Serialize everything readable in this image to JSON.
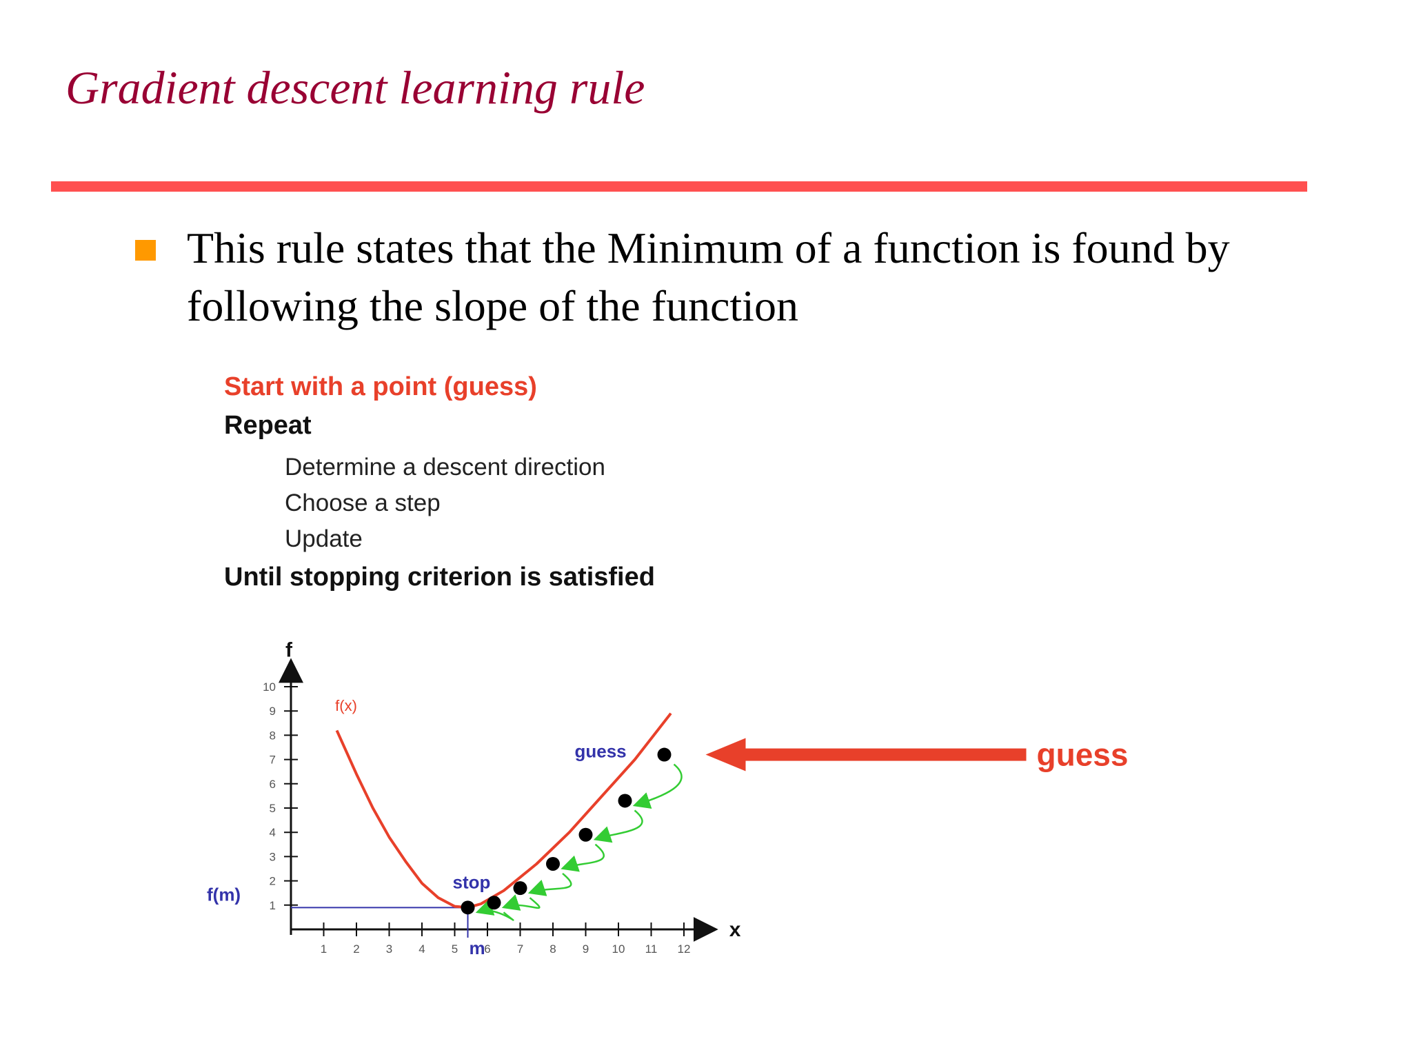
{
  "slide": {
    "title": "Gradient descent learning rule",
    "bullet": "This rule states that the Minimum of a function is found by following the slope of the function"
  },
  "algorithm": {
    "start": "Start with a point (guess)",
    "repeat": "Repeat",
    "steps": [
      "Determine a descent direction",
      "Choose a step",
      "Update"
    ],
    "until": "Until stopping criterion is satisfied"
  },
  "colors": {
    "title": "#990033",
    "rule": "#ff5050",
    "bullet": "#ff9900",
    "curve": "#e8402a",
    "arrow": "#e8402a",
    "green_arrows": "#33cc33",
    "blue_label": "#3333aa"
  },
  "chart_data": {
    "type": "line",
    "ylabel": "f",
    "xlabel": "x",
    "curve_label": "f(x)",
    "xlim": [
      0,
      12.5
    ],
    "ylim": [
      0,
      10.5
    ],
    "x_ticks": [
      "1",
      "2",
      "3",
      "4",
      "5",
      "6",
      "7",
      "8",
      "9",
      "10",
      "11",
      "12"
    ],
    "y_ticks": [
      "1",
      "2",
      "3",
      "4",
      "5",
      "6",
      "7",
      "8",
      "9",
      "10"
    ],
    "curve": [
      {
        "x": 1.4,
        "y": 8.2
      },
      {
        "x": 2.0,
        "y": 6.4
      },
      {
        "x": 2.5,
        "y": 5.0
      },
      {
        "x": 3.0,
        "y": 3.8
      },
      {
        "x": 3.5,
        "y": 2.8
      },
      {
        "x": 4.0,
        "y": 1.9
      },
      {
        "x": 4.5,
        "y": 1.3
      },
      {
        "x": 5.0,
        "y": 0.95
      },
      {
        "x": 5.4,
        "y": 0.9
      },
      {
        "x": 5.8,
        "y": 1.05
      },
      {
        "x": 6.5,
        "y": 1.6
      },
      {
        "x": 7.5,
        "y": 2.7
      },
      {
        "x": 8.5,
        "y": 4.0
      },
      {
        "x": 9.5,
        "y": 5.5
      },
      {
        "x": 10.5,
        "y": 7.0
      },
      {
        "x": 11.6,
        "y": 8.9
      }
    ],
    "points": [
      {
        "x": 5.4,
        "y": 0.9
      },
      {
        "x": 6.2,
        "y": 1.1
      },
      {
        "x": 7.0,
        "y": 1.7
      },
      {
        "x": 8.0,
        "y": 2.7
      },
      {
        "x": 9.0,
        "y": 3.9
      },
      {
        "x": 10.2,
        "y": 5.3
      },
      {
        "x": 11.4,
        "y": 7.2
      }
    ],
    "annotations": {
      "guess": "guess",
      "stop": "stop",
      "fm": "f(m)",
      "m": "m"
    },
    "min_point": {
      "x": 5.4,
      "y": 0.9
    },
    "external_label": "guess"
  }
}
